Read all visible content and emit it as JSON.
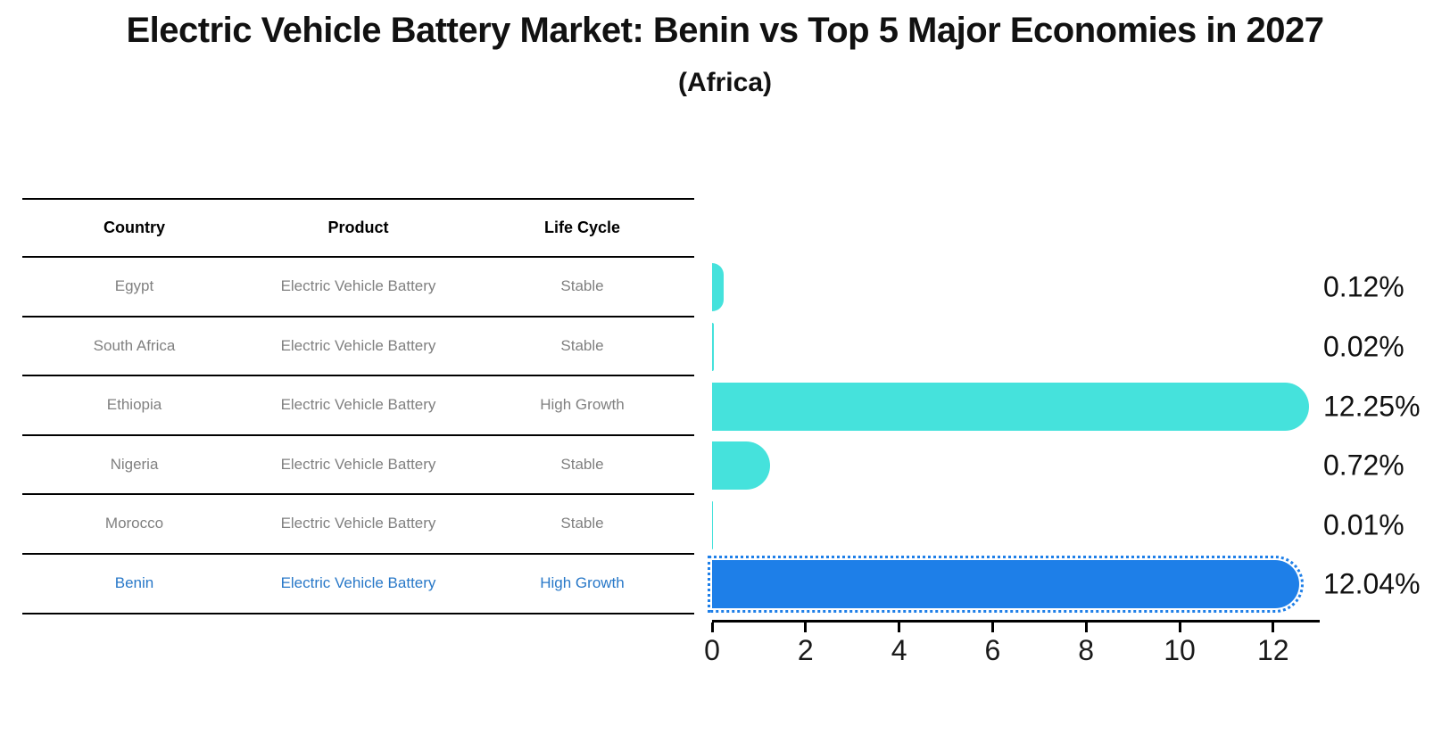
{
  "title": "Electric Vehicle Battery Market: Benin vs Top 5 Major Economies in 2027",
  "subtitle": "(Africa)",
  "table": {
    "headers": [
      "Country",
      "Product",
      "Life Cycle"
    ],
    "rows": [
      {
        "country": "Egypt",
        "product": "Electric Vehicle Battery",
        "life_cycle": "Stable",
        "highlight": false
      },
      {
        "country": "South Africa",
        "product": "Electric Vehicle Battery",
        "life_cycle": "Stable",
        "highlight": false
      },
      {
        "country": "Ethiopia",
        "product": "Electric Vehicle Battery",
        "life_cycle": "High Growth",
        "highlight": false
      },
      {
        "country": "Nigeria",
        "product": "Electric Vehicle Battery",
        "life_cycle": "Stable",
        "highlight": false
      },
      {
        "country": "Morocco",
        "product": "Electric Vehicle Battery",
        "life_cycle": "Stable",
        "highlight": false
      },
      {
        "country": "Benin",
        "product": "Electric Vehicle Battery",
        "life_cycle": "High Growth",
        "highlight": true
      }
    ]
  },
  "chart_data": {
    "type": "bar",
    "orientation": "horizontal",
    "title": "Electric Vehicle Battery Market: Benin vs Top 5 Major Economies in 2027 (Africa)",
    "categories": [
      "Egypt",
      "South Africa",
      "Ethiopia",
      "Nigeria",
      "Morocco",
      "Benin"
    ],
    "values": [
      0.12,
      0.02,
      12.25,
      0.72,
      0.01,
      12.04
    ],
    "value_labels": [
      "0.12%",
      "0.02%",
      "12.25%",
      "0.72%",
      "0.01%",
      "12.04%"
    ],
    "x_ticks": [
      "0",
      "2",
      "4",
      "6",
      "8",
      "10",
      "12"
    ],
    "x_tick_values": [
      0,
      2,
      4,
      6,
      8,
      10,
      12
    ],
    "xlim": [
      0,
      13
    ],
    "xlabel": "",
    "ylabel": "",
    "grid": false,
    "legend": false,
    "bar_color": "#45E2DC",
    "highlight_bar_color": "#1E7FE8",
    "highlight_index": 5,
    "highlight_text_color": "#2878C8"
  }
}
